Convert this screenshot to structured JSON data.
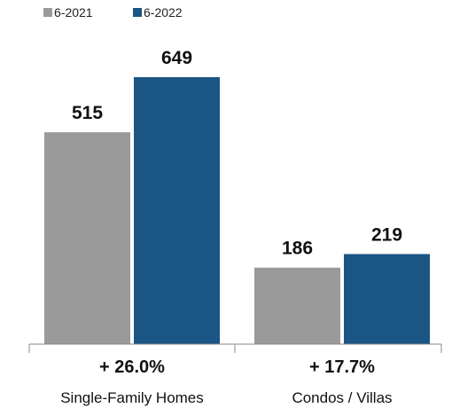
{
  "chart_data": {
    "type": "bar",
    "categories": [
      "Single-Family Homes",
      "Condos / Villas"
    ],
    "changes": [
      "+ 26.0%",
      "+ 17.7%"
    ],
    "series": [
      {
        "name": "6-2021",
        "values": [
          515,
          186
        ],
        "color": "#9a9a9a"
      },
      {
        "name": "6-2022",
        "values": [
          649,
          219
        ],
        "color": "#1b5584"
      }
    ],
    "title": "",
    "xlabel": "",
    "ylabel": "",
    "ylim": [
      0,
      700
    ],
    "grid": false,
    "legend": "top-left"
  }
}
